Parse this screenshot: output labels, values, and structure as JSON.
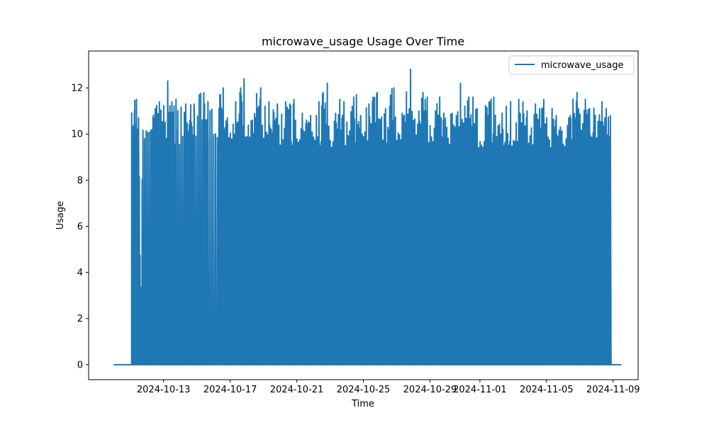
{
  "chart_data": {
    "type": "line",
    "title": "microwave_usage Usage Over Time",
    "xlabel": "Time",
    "ylabel": "Usage",
    "x_range": [
      "2024-10-10T00:00",
      "2024-11-09T12:00"
    ],
    "xlim": [
      "2024-10-08T12:00",
      "2024-11-10T12:00"
    ],
    "ylim": [
      -0.65,
      13.6
    ],
    "x_ticks": [
      "2024-10-13",
      "2024-10-17",
      "2024-10-21",
      "2024-10-25",
      "2024-10-29",
      "2024-11-01",
      "2024-11-05",
      "2024-11-09"
    ],
    "y_ticks": [
      0,
      2,
      4,
      6,
      8,
      10,
      12
    ],
    "grid": false,
    "legend_position": "top-right",
    "series": [
      {
        "name": "microwave_usage",
        "color": "#1f77b4",
        "description_points": [
          [
            "2024-10-10T00:00",
            0
          ],
          [
            "2024-10-11T02:00",
            0
          ],
          [
            "2024-10-11T06:00",
            11.0
          ],
          [
            "2024-10-11T09:00",
            11.5
          ],
          [
            "2024-10-11T12:00",
            10.7
          ],
          [
            "2024-10-11T18:00",
            0
          ],
          [
            "2024-10-12T08:00",
            10.2
          ],
          [
            "2024-10-12T12:00",
            11.1
          ],
          [
            "2024-10-12T18:00",
            11.4
          ],
          [
            "2024-10-13T06:00",
            12.3
          ],
          [
            "2024-10-13T12:00",
            11.4
          ],
          [
            "2024-10-13T18:00",
            11.5
          ],
          [
            "2024-10-14T08:00",
            11.3
          ],
          [
            "2024-10-14T14:00",
            10.6
          ],
          [
            "2024-10-14T20:00",
            11.3
          ],
          [
            "2024-10-15T10:00",
            11.8
          ],
          [
            "2024-10-15T16:00",
            11.4
          ],
          [
            "2024-10-16T08:00",
            11.1
          ],
          [
            "2024-10-16T14:00",
            12.0
          ],
          [
            "2024-10-16T20:00",
            10.7
          ],
          [
            "2024-10-17T08:00",
            11.4
          ],
          [
            "2024-10-17T14:00",
            11.0
          ],
          [
            "2024-10-17T20:00",
            12.4
          ],
          [
            "2024-10-18T08:00",
            10.6
          ],
          [
            "2024-10-18T14:00",
            10.9
          ],
          [
            "2024-10-18T20:00",
            12.0
          ],
          [
            "2024-10-19T08:00",
            11.4
          ],
          [
            "2024-10-19T14:00",
            10.5
          ],
          [
            "2024-10-19T20:00",
            11.3
          ],
          [
            "2024-10-20T08:00",
            11.4
          ],
          [
            "2024-10-20T14:00",
            11.3
          ],
          [
            "2024-10-20T20:00",
            11.5
          ],
          [
            "2024-10-21T08:00",
            10.9
          ],
          [
            "2024-10-21T14:00",
            10.6
          ],
          [
            "2024-10-21T20:00",
            10.8
          ],
          [
            "2024-10-22T08:00",
            11.4
          ],
          [
            "2024-10-22T14:00",
            11.8
          ],
          [
            "2024-10-22T20:00",
            12.2
          ],
          [
            "2024-10-23T08:00",
            10.9
          ],
          [
            "2024-10-23T14:00",
            11.5
          ],
          [
            "2024-10-23T20:00",
            11.4
          ],
          [
            "2024-10-24T08:00",
            11.2
          ],
          [
            "2024-10-24T14:00",
            11.7
          ],
          [
            "2024-10-24T20:00",
            10.8
          ],
          [
            "2024-10-25T08:00",
            11.3
          ],
          [
            "2024-10-25T14:00",
            11.6
          ],
          [
            "2024-10-25T20:00",
            11.8
          ],
          [
            "2024-10-26T08:00",
            11.1
          ],
          [
            "2024-10-26T14:00",
            11.2
          ],
          [
            "2024-10-26T20:00",
            12.0
          ],
          [
            "2024-10-27T08:00",
            10.9
          ],
          [
            "2024-10-27T14:00",
            11.1
          ],
          [
            "2024-10-27T20:00",
            12.8
          ],
          [
            "2024-10-28T08:00",
            11.0
          ],
          [
            "2024-10-28T14:00",
            11.8
          ],
          [
            "2024-10-28T20:00",
            11.6
          ],
          [
            "2024-10-29T08:00",
            11.0
          ],
          [
            "2024-10-29T14:00",
            11.6
          ],
          [
            "2024-10-29T20:00",
            10.9
          ],
          [
            "2024-10-30T08:00",
            10.9
          ],
          [
            "2024-10-30T14:00",
            10.8
          ],
          [
            "2024-10-30T20:00",
            12.2
          ],
          [
            "2024-10-31T08:00",
            11.6
          ],
          [
            "2024-10-31T14:00",
            11.6
          ],
          [
            "2024-10-31T20:00",
            11.1
          ],
          [
            "2024-11-01T08:00",
            10.8
          ],
          [
            "2024-11-01T14:00",
            11.4
          ],
          [
            "2024-11-01T20:00",
            11.6
          ],
          [
            "2024-11-02T08:00",
            10.9
          ],
          [
            "2024-11-02T14:00",
            11.2
          ],
          [
            "2024-11-02T20:00",
            10.5
          ],
          [
            "2024-11-03T08:00",
            11.5
          ],
          [
            "2024-11-03T14:00",
            11.4
          ],
          [
            "2024-11-03T20:00",
            11.0
          ],
          [
            "2024-11-04T08:00",
            11.3
          ],
          [
            "2024-11-04T14:00",
            11.1
          ],
          [
            "2024-11-04T20:00",
            11.5
          ],
          [
            "2024-11-05T08:00",
            11.1
          ],
          [
            "2024-11-05T14:00",
            10.8
          ],
          [
            "2024-11-05T20:00",
            10.3
          ],
          [
            "2024-11-06T08:00",
            10.7
          ],
          [
            "2024-11-06T14:00",
            10.8
          ],
          [
            "2024-11-06T20:00",
            11.8
          ],
          [
            "2024-11-07T08:00",
            11.5
          ],
          [
            "2024-11-07T14:00",
            11.1
          ],
          [
            "2024-11-07T20:00",
            10.3
          ],
          [
            "2024-11-08T08:00",
            11.4
          ],
          [
            "2024-11-08T14:00",
            11.1
          ],
          [
            "2024-11-08T20:00",
            10.8
          ],
          [
            "2024-11-09T12:00",
            0
          ]
        ]
      }
    ]
  }
}
